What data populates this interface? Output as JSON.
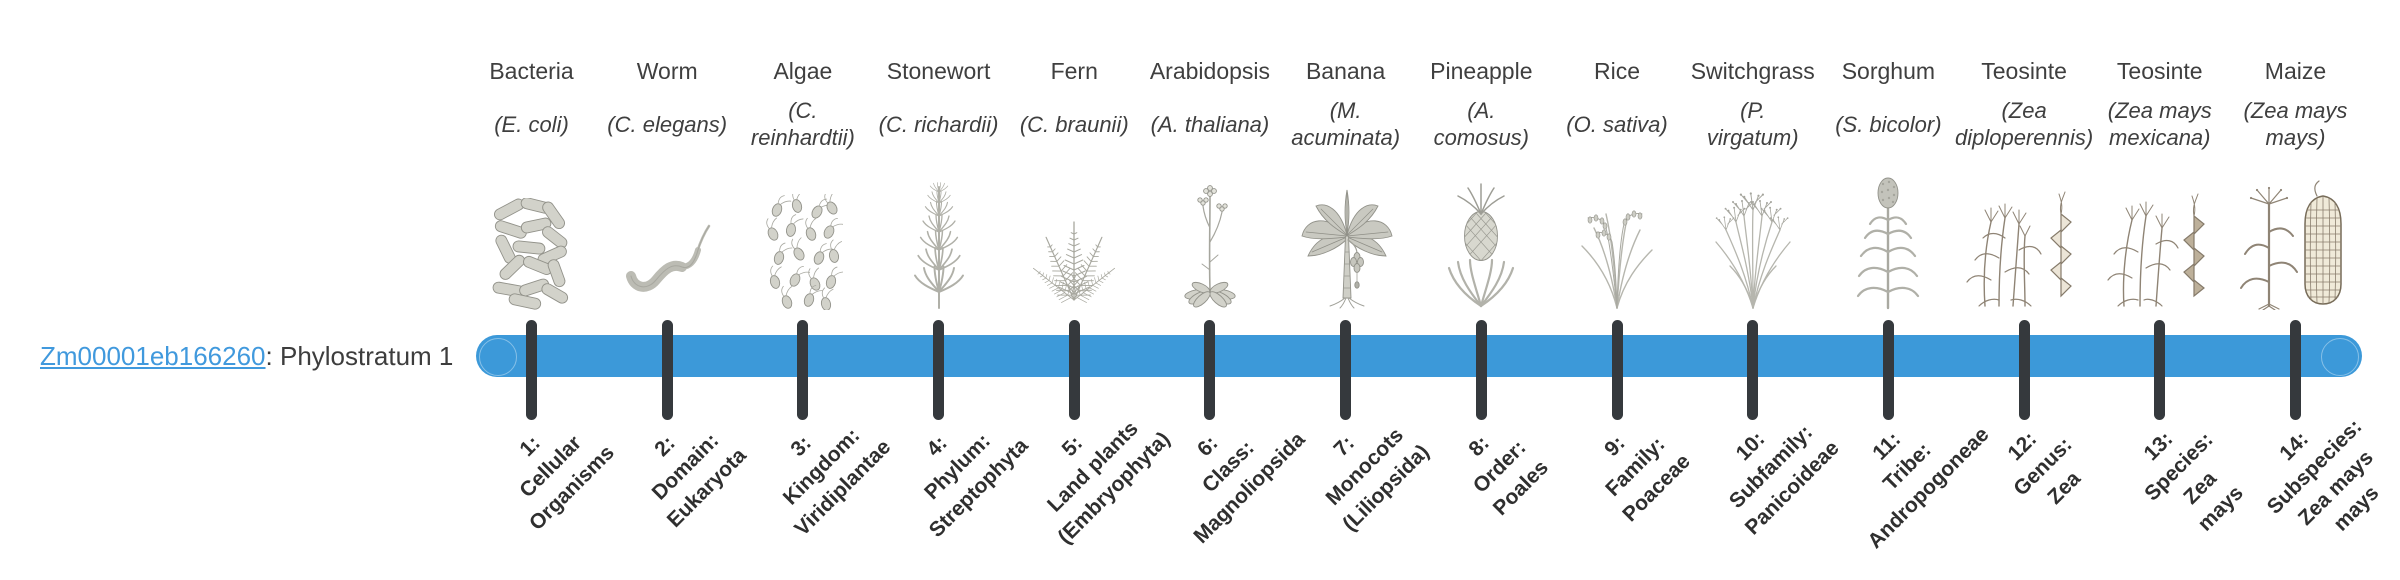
{
  "gene": {
    "id": "Zm00001eb166260",
    "stratum_text": ": Phylostratum 1"
  },
  "colors": {
    "bar": "#3c99d9",
    "tick": "#35393d",
    "link": "#4099dd"
  },
  "taxa": [
    {
      "common": "Bacteria",
      "scientific": [
        "(E. coli)"
      ],
      "icon": "bacteria-icon",
      "stratum": [
        "1:",
        "Cellular",
        "Organisms"
      ]
    },
    {
      "common": "Worm",
      "scientific": [
        "(C. elegans)"
      ],
      "icon": "worm-icon",
      "stratum": [
        "2:",
        "Domain:",
        "Eukaryota"
      ]
    },
    {
      "common": "Algae",
      "scientific": [
        "(C.",
        "reinhardtii)"
      ],
      "icon": "algae-icon",
      "stratum": [
        "3:",
        "Kingdom:",
        "Viridiplantae"
      ]
    },
    {
      "common": "Stonewort",
      "scientific": [
        "(C. richardii)"
      ],
      "icon": "stonewort-icon",
      "stratum": [
        "4:",
        "Phylum:",
        "Streptophyta"
      ]
    },
    {
      "common": "Fern",
      "scientific": [
        "(C. braunii)"
      ],
      "icon": "fern-icon",
      "stratum": [
        "5:",
        "Land plants",
        "(Embryophyta)"
      ]
    },
    {
      "common": "Arabidopsis",
      "scientific": [
        "(A. thaliana)"
      ],
      "icon": "arabidopsis-icon",
      "stratum": [
        "6:",
        "Class:",
        "Magnoliopsida"
      ]
    },
    {
      "common": "Banana",
      "scientific": [
        "(M.",
        "acuminata)"
      ],
      "icon": "banana-icon",
      "stratum": [
        "7:",
        "Monocots",
        "(Liliopsida)"
      ]
    },
    {
      "common": "Pineapple",
      "scientific": [
        "(A.",
        "comosus)"
      ],
      "icon": "pineapple-icon",
      "stratum": [
        "8:",
        "Order:",
        "Poales"
      ]
    },
    {
      "common": "Rice",
      "scientific": [
        "(O. sativa)"
      ],
      "icon": "rice-icon",
      "stratum": [
        "9:",
        "Family:",
        "Poaceae"
      ]
    },
    {
      "common": "Switchgrass",
      "scientific": [
        "(P.",
        "virgatum)"
      ],
      "icon": "switchgrass-icon",
      "stratum": [
        "10:",
        "Subfamily:",
        "Panicoideae"
      ]
    },
    {
      "common": "Sorghum",
      "scientific": [
        "(S. bicolor)"
      ],
      "icon": "sorghum-icon",
      "stratum": [
        "11:",
        "Tribe:",
        "Andropogoneae"
      ]
    },
    {
      "common": "Teosinte",
      "scientific": [
        "(Zea",
        "diploperennis)"
      ],
      "icon": "teosinte-diploperennis-icon",
      "stratum": [
        "12:",
        "Genus:",
        "Zea"
      ]
    },
    {
      "common": "Teosinte",
      "scientific": [
        "(Zea mays",
        "mexicana)"
      ],
      "icon": "teosinte-mexicana-icon",
      "stratum": [
        "13:",
        "Species:",
        "Zea",
        "mays"
      ]
    },
    {
      "common": "Maize",
      "scientific": [
        "(Zea mays",
        "mays)"
      ],
      "icon": "maize-icon",
      "stratum": [
        "14:",
        "Subspecies:",
        "Zea mays",
        "mays"
      ]
    }
  ]
}
